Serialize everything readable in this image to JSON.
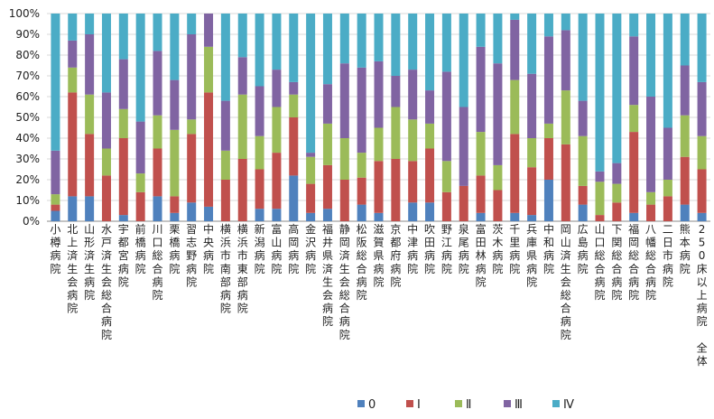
{
  "chart_data": {
    "type": "bar",
    "stacked": true,
    "percent": true,
    "grid": true,
    "legend_position": "bottom",
    "ylim": [
      0,
      100
    ],
    "yticks": [
      "0%",
      "10%",
      "20%",
      "30%",
      "40%",
      "50%",
      "60%",
      "70%",
      "80%",
      "90%",
      "100%"
    ],
    "categories": [
      "小樽病院",
      "北上済生会病院",
      "山形済生病院",
      "水戸済生会総合病院",
      "宇都宮病院",
      "前橋病院",
      "川口総合病院",
      "栗橋病院",
      "習志野病院",
      "中央病院",
      "横浜市南部病院",
      "横浜市東部病院",
      "新潟病院",
      "富山病院",
      "高岡病院",
      "金沢病院",
      "福井県済生会病院",
      "静岡済生会総合病院",
      "松阪総合病院",
      "滋賀県病院",
      "京都府病院",
      "中津病院",
      "吹田病院",
      "野江病院",
      "泉尾病院",
      "富田林病院",
      "茨木病院",
      "千里病院",
      "兵庫県病院",
      "中和病院",
      "岡山済生会総合病院",
      "広島病院",
      "山口総合病院",
      "下関総合病院",
      "福岡総合病院",
      "八幡総合病院",
      "二日市病院",
      "熊本病院",
      "250床以上病院　全体"
    ],
    "series": [
      {
        "name": "0",
        "color": "#4F81BD",
        "values": [
          5,
          12,
          12,
          0,
          3,
          0,
          12,
          4,
          9,
          7,
          0,
          0,
          6,
          6,
          22,
          4,
          6,
          0,
          8,
          4,
          0,
          9,
          9,
          0,
          0,
          4,
          0,
          4,
          3,
          20,
          0,
          8,
          0,
          0,
          4,
          0,
          0,
          8,
          4
        ]
      },
      {
        "name": "Ⅰ",
        "color": "#C0504D",
        "values": [
          3,
          50,
          30,
          22,
          37,
          14,
          23,
          8,
          33,
          55,
          20,
          30,
          19,
          27,
          28,
          14,
          21,
          20,
          13,
          25,
          30,
          20,
          26,
          14,
          17,
          18,
          15,
          38,
          23,
          20,
          37,
          9,
          3,
          9,
          39,
          8,
          12,
          23,
          21
        ]
      },
      {
        "name": "Ⅱ",
        "color": "#9BBB59",
        "values": [
          5,
          12,
          19,
          13,
          14,
          9,
          16,
          32,
          7,
          22,
          14,
          31,
          16,
          22,
          11,
          13,
          20,
          20,
          12,
          16,
          25,
          20,
          12,
          15,
          0,
          21,
          12,
          26,
          14,
          7,
          26,
          24,
          16,
          9,
          13,
          6,
          8,
          20,
          16
        ]
      },
      {
        "name": "Ⅲ",
        "color": "#8064A2",
        "values": [
          21,
          13,
          29,
          27,
          24,
          25,
          31,
          24,
          41,
          16,
          24,
          18,
          24,
          18,
          6,
          2,
          19,
          36,
          41,
          32,
          15,
          24,
          16,
          43,
          38,
          41,
          49,
          29,
          31,
          42,
          29,
          17,
          5,
          10,
          33,
          46,
          25,
          24,
          26
        ]
      },
      {
        "name": "Ⅳ",
        "color": "#4BACC6",
        "values": [
          66,
          13,
          10,
          38,
          22,
          52,
          18,
          32,
          10,
          0,
          42,
          21,
          35,
          27,
          33,
          67,
          34,
          24,
          26,
          23,
          30,
          27,
          37,
          28,
          45,
          16,
          24,
          3,
          29,
          11,
          8,
          42,
          76,
          72,
          11,
          40,
          55,
          25,
          33
        ]
      }
    ]
  }
}
